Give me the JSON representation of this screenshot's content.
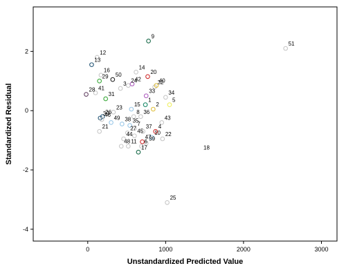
{
  "chart_data": {
    "type": "scatter",
    "title": "",
    "xlabel": "Unstandardized Predicted Value",
    "ylabel": "Standardized Residual",
    "xlim": [
      -700,
      3200
    ],
    "ylim": [
      -4.4,
      3.5
    ],
    "xticks": [
      0,
      1000,
      2000,
      3000
    ],
    "yticks": [
      -4,
      -2,
      0,
      2
    ],
    "grid": false,
    "points": [
      {
        "label": "1",
        "x": 740,
        "y": 0.2,
        "color": "#1a8a6a"
      },
      {
        "label": "2",
        "x": 840,
        "y": 0.05,
        "color": "#e0c040"
      },
      {
        "label": "3",
        "x": 420,
        "y": 0.75,
        "color": "#c8c8c8"
      },
      {
        "label": "4",
        "x": 870,
        "y": -0.7,
        "color": "#d03030"
      },
      {
        "label": "5",
        "x": 1050,
        "y": 0.2,
        "color": "#f0f060"
      },
      {
        "label": "6",
        "x": 690,
        "y": -1.2,
        "color": "#c8c8c8"
      },
      {
        "label": "7",
        "x": 600,
        "y": -0.6,
        "color": "#c8c8c8"
      },
      {
        "label": "8",
        "x": 590,
        "y": -0.2,
        "color": "#c8c8c8"
      },
      {
        "label": "9",
        "x": 780,
        "y": 2.35,
        "color": "#1a6a4a"
      },
      {
        "label": "10",
        "x": 820,
        "y": -0.9,
        "color": "#9ac8e8"
      },
      {
        "label": "11",
        "x": 520,
        "y": -1.2,
        "color": "#c8c8c8"
      },
      {
        "label": "12",
        "x": 120,
        "y": 1.8,
        "color": "#c8c8c8"
      },
      {
        "label": "13",
        "x": 50,
        "y": 1.55,
        "color": "#2a5a7a"
      },
      {
        "label": "14",
        "x": 620,
        "y": 1.3,
        "color": "#c8c8c8"
      },
      {
        "label": "15",
        "x": 560,
        "y": 0.05,
        "color": "#9ac8e8"
      },
      {
        "label": "16",
        "x": 170,
        "y": 1.2,
        "color": "#c8c8c8"
      },
      {
        "label": "17",
        "x": 650,
        "y": -1.4,
        "color": "#1a6a4a"
      },
      {
        "label": "18",
        "x": 1450,
        "y": -1.4,
        "color": "#ffffff"
      },
      {
        "label": "20",
        "x": 770,
        "y": 1.15,
        "color": "#d03030"
      },
      {
        "label": "21",
        "x": 150,
        "y": -0.7,
        "color": "#c8c8c8"
      },
      {
        "label": "22",
        "x": 960,
        "y": -0.95,
        "color": "#c8c8c8"
      },
      {
        "label": "23",
        "x": 330,
        "y": -0.05,
        "color": "#c8c8c8"
      },
      {
        "label": "24",
        "x": 520,
        "y": 0.85,
        "color": "#c8c8c8"
      },
      {
        "label": "25",
        "x": 1020,
        "y": -3.1,
        "color": "#c8c8c8"
      },
      {
        "label": "26",
        "x": 190,
        "y": -0.2,
        "color": "#2a5a7a"
      },
      {
        "label": "27",
        "x": 510,
        "y": -0.75,
        "color": "#c8c8c8"
      },
      {
        "label": "28",
        "x": -20,
        "y": 0.55,
        "color": "#6a4a6a"
      },
      {
        "label": "29",
        "x": 150,
        "y": 1.0,
        "color": "#3aa83a"
      },
      {
        "label": "30",
        "x": 160,
        "y": -0.25,
        "color": "#2a5a7a"
      },
      {
        "label": "31",
        "x": 230,
        "y": 0.4,
        "color": "#3aa83a"
      },
      {
        "label": "32",
        "x": 860,
        "y": 0.8,
        "color": "#c8c8c8"
      },
      {
        "label": "33",
        "x": 750,
        "y": 0.5,
        "color": "#b060c0"
      },
      {
        "label": "34",
        "x": 1000,
        "y": 0.45,
        "color": "#c8c8c8"
      },
      {
        "label": "35",
        "x": 540,
        "y": -0.5,
        "color": "#9ac8e8"
      },
      {
        "label": "36",
        "x": 680,
        "y": -0.2,
        "color": "#c8c8c8"
      },
      {
        "label": "37",
        "x": 710,
        "y": -0.7,
        "color": "#c8c8c8"
      },
      {
        "label": "38",
        "x": 440,
        "y": -0.45,
        "color": "#9ac8e8"
      },
      {
        "label": "39",
        "x": 750,
        "y": -1.1,
        "color": "#c8c8c8"
      },
      {
        "label": "40",
        "x": 880,
        "y": 0.85,
        "color": "#e0c040"
      },
      {
        "label": "41",
        "x": 100,
        "y": 0.6,
        "color": "#c8c8c8"
      },
      {
        "label": "42",
        "x": 570,
        "y": 0.9,
        "color": "#b060c0"
      },
      {
        "label": "43",
        "x": 950,
        "y": -0.4,
        "color": "#c8c8c8"
      },
      {
        "label": "44",
        "x": 460,
        "y": -0.95,
        "color": "#c8c8c8"
      },
      {
        "label": "45",
        "x": 600,
        "y": -0.85,
        "color": "#c8c8c8"
      },
      {
        "label": "46",
        "x": 180,
        "y": -0.3,
        "color": "#c8c8c8"
      },
      {
        "label": "47",
        "x": 700,
        "y": -1.05,
        "color": "#d03030"
      },
      {
        "label": "48",
        "x": 430,
        "y": -1.2,
        "color": "#c8c8c8"
      },
      {
        "label": "49",
        "x": 300,
        "y": -0.4,
        "color": "#9ac8e8"
      },
      {
        "label": "50",
        "x": 320,
        "y": 1.05,
        "color": "#2a2a2a"
      },
      {
        "label": "51",
        "x": 2540,
        "y": 2.1,
        "color": "#c8c8c8"
      }
    ]
  }
}
